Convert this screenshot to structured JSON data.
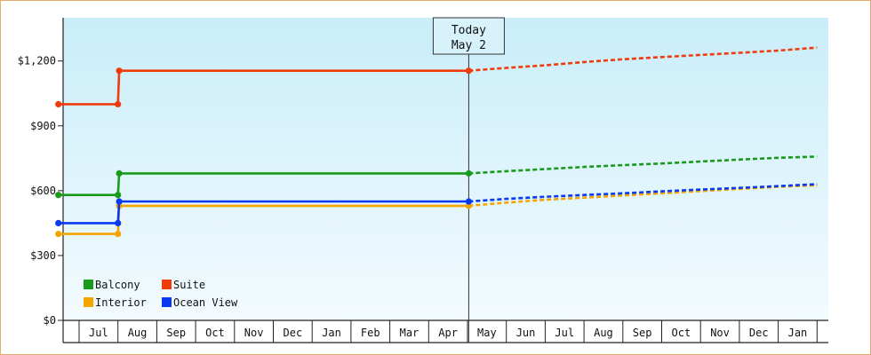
{
  "chart_data": {
    "type": "line",
    "title": "",
    "xlabel": "",
    "ylabel": "",
    "ylim": [
      0,
      1400
    ],
    "y_ticks": [
      {
        "value": 0,
        "label": "$0"
      },
      {
        "value": 300,
        "label": "$300"
      },
      {
        "value": 600,
        "label": "$600"
      },
      {
        "value": 900,
        "label": "$900"
      },
      {
        "value": 1200,
        "label": "$1,200"
      }
    ],
    "x_months": [
      "Jul",
      "Aug",
      "Sep",
      "Oct",
      "Nov",
      "Dec",
      "Jan",
      "Feb",
      "Mar",
      "Apr",
      "May",
      "Jun",
      "Jul",
      "Aug",
      "Sep",
      "Oct",
      "Nov",
      "Dec",
      "Jan"
    ],
    "today": {
      "line1": "Today",
      "line2": "May 2"
    },
    "series": [
      {
        "name": "Balcony",
        "color": "#1a9a1a",
        "historical": [
          [
            "2023-06-15",
            580
          ],
          [
            "2023-08-01",
            580
          ],
          [
            "2023-08-02",
            680
          ],
          [
            "2024-05-02",
            680
          ]
        ],
        "forecast": [
          [
            "2024-05-02",
            680
          ],
          [
            "2024-06-01",
            690
          ],
          [
            "2024-07-01",
            700
          ],
          [
            "2024-08-01",
            710
          ],
          [
            "2024-09-01",
            718
          ],
          [
            "2024-10-01",
            726
          ],
          [
            "2024-11-01",
            735
          ],
          [
            "2024-12-01",
            744
          ],
          [
            "2025-01-01",
            752
          ],
          [
            "2025-02-01",
            758
          ]
        ]
      },
      {
        "name": "Suite",
        "color": "#f03c0a",
        "historical": [
          [
            "2023-06-15",
            1000
          ],
          [
            "2023-08-01",
            1000
          ],
          [
            "2023-08-02",
            1155
          ],
          [
            "2024-05-02",
            1155
          ]
        ],
        "forecast": [
          [
            "2024-05-02",
            1155
          ],
          [
            "2024-06-01",
            1168
          ],
          [
            "2024-07-01",
            1180
          ],
          [
            "2024-08-01",
            1195
          ],
          [
            "2024-09-01",
            1208
          ],
          [
            "2024-10-01",
            1218
          ],
          [
            "2024-11-01",
            1228
          ],
          [
            "2024-12-01",
            1238
          ],
          [
            "2025-01-01",
            1248
          ],
          [
            "2025-02-01",
            1262
          ]
        ]
      },
      {
        "name": "Interior",
        "color": "#f5a500",
        "historical": [
          [
            "2023-06-15",
            400
          ],
          [
            "2023-08-01",
            400
          ],
          [
            "2023-08-02",
            530
          ],
          [
            "2024-05-02",
            530
          ]
        ],
        "forecast": [
          [
            "2024-05-02",
            530
          ],
          [
            "2024-06-01",
            545
          ],
          [
            "2024-07-01",
            558
          ],
          [
            "2024-08-01",
            568
          ],
          [
            "2024-09-01",
            578
          ],
          [
            "2024-10-01",
            588
          ],
          [
            "2024-11-01",
            598
          ],
          [
            "2024-12-01",
            608
          ],
          [
            "2025-01-01",
            618
          ],
          [
            "2025-02-01",
            625
          ]
        ]
      },
      {
        "name": "Ocean View",
        "color": "#0a3af0",
        "historical": [
          [
            "2023-06-15",
            450
          ],
          [
            "2023-08-01",
            450
          ],
          [
            "2023-08-02",
            550
          ],
          [
            "2024-05-02",
            550
          ]
        ],
        "forecast": [
          [
            "2024-05-02",
            550
          ],
          [
            "2024-06-01",
            562
          ],
          [
            "2024-07-01",
            572
          ],
          [
            "2024-08-01",
            580
          ],
          [
            "2024-09-01",
            588
          ],
          [
            "2024-10-01",
            597
          ],
          [
            "2024-11-01",
            605
          ],
          [
            "2024-12-01",
            613
          ],
          [
            "2025-01-01",
            621
          ],
          [
            "2025-02-01",
            630
          ]
        ]
      }
    ],
    "legend_position": "bottom-left",
    "grid": false,
    "background_gradient": [
      "#c9edf9",
      "#f3fbfe"
    ]
  }
}
